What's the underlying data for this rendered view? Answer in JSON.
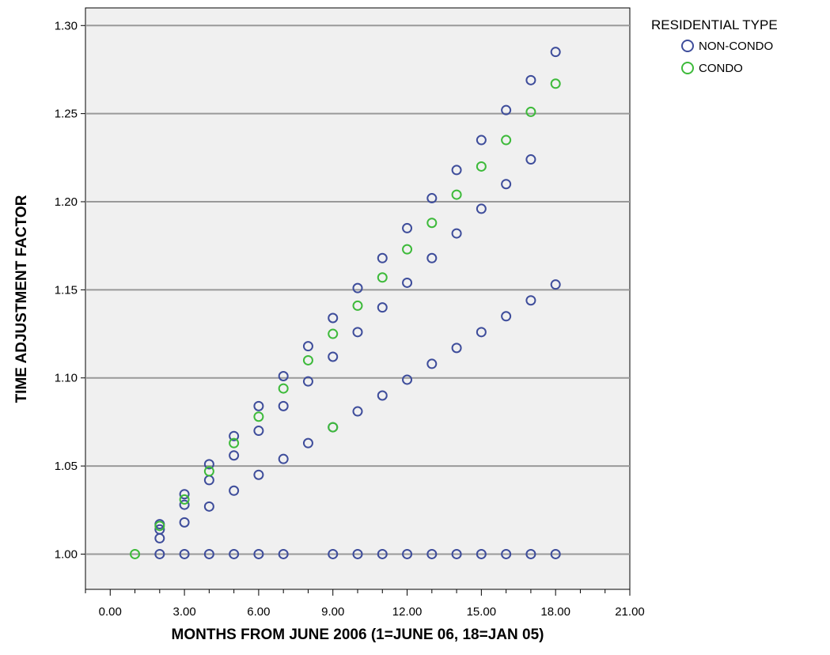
{
  "chart_data": {
    "type": "scatter",
    "title": "",
    "xlabel": "MONTHS FROM JUNE 2006 (1=JUNE 06, 18=JAN 05)",
    "ylabel": "TIME ADJUSTMENT FACTOR",
    "xlim": [
      -1,
      21
    ],
    "ylim": [
      0.98,
      1.31
    ],
    "x_ticks": [
      0,
      3,
      6,
      9,
      12,
      15,
      18,
      21
    ],
    "x_tick_labels": [
      "0.00",
      "3.00",
      "6.00",
      "9.00",
      "12.00",
      "15.00",
      "18.00",
      "21.00"
    ],
    "x_minor_step": 1,
    "y_ticks": [
      1.0,
      1.05,
      1.1,
      1.15,
      1.2,
      1.25,
      1.3
    ],
    "y_tick_labels": [
      "1.00",
      "1.05",
      "1.10",
      "1.15",
      "1.20",
      "1.25",
      "1.30"
    ],
    "grid": "horizontal",
    "plot_background": "#f0f0f0",
    "legend": {
      "title": "RESIDENTIAL TYPE",
      "placement": "top-right, outside plot"
    },
    "series": [
      {
        "name": "NON-CONDO",
        "color": "#3e4d9b",
        "points": [
          [
            2,
            1.0
          ],
          [
            3,
            1.0
          ],
          [
            4,
            1.0
          ],
          [
            5,
            1.0
          ],
          [
            6,
            1.0
          ],
          [
            7,
            1.0
          ],
          [
            9,
            1.0
          ],
          [
            10,
            1.0
          ],
          [
            11,
            1.0
          ],
          [
            12,
            1.0
          ],
          [
            13,
            1.0
          ],
          [
            14,
            1.0
          ],
          [
            15,
            1.0
          ],
          [
            16,
            1.0
          ],
          [
            17,
            1.0
          ],
          [
            18,
            1.0
          ],
          [
            2,
            1.009
          ],
          [
            3,
            1.018
          ],
          [
            4,
            1.027
          ],
          [
            5,
            1.036
          ],
          [
            6,
            1.045
          ],
          [
            7,
            1.054
          ],
          [
            8,
            1.063
          ],
          [
            9,
            1.072
          ],
          [
            10,
            1.081
          ],
          [
            11,
            1.09
          ],
          [
            12,
            1.099
          ],
          [
            13,
            1.108
          ],
          [
            14,
            1.117
          ],
          [
            15,
            1.126
          ],
          [
            16,
            1.135
          ],
          [
            17,
            1.144
          ],
          [
            18,
            1.153
          ],
          [
            2,
            1.014
          ],
          [
            3,
            1.028
          ],
          [
            4,
            1.042
          ],
          [
            5,
            1.056
          ],
          [
            6,
            1.07
          ],
          [
            7,
            1.084
          ],
          [
            8,
            1.098
          ],
          [
            9,
            1.112
          ],
          [
            10,
            1.126
          ],
          [
            11,
            1.14
          ],
          [
            12,
            1.154
          ],
          [
            13,
            1.168
          ],
          [
            14,
            1.182
          ],
          [
            15,
            1.196
          ],
          [
            16,
            1.21
          ],
          [
            17,
            1.224
          ],
          [
            2,
            1.017
          ],
          [
            3,
            1.034
          ],
          [
            4,
            1.051
          ],
          [
            5,
            1.067
          ],
          [
            6,
            1.084
          ],
          [
            7,
            1.101
          ],
          [
            8,
            1.118
          ],
          [
            9,
            1.134
          ],
          [
            10,
            1.151
          ],
          [
            11,
            1.168
          ],
          [
            12,
            1.185
          ],
          [
            13,
            1.202
          ],
          [
            14,
            1.218
          ],
          [
            15,
            1.235
          ],
          [
            16,
            1.252
          ],
          [
            17,
            1.269
          ],
          [
            18,
            1.285
          ]
        ]
      },
      {
        "name": "CONDO",
        "color": "#3dba3a",
        "points": [
          [
            1,
            1.0
          ],
          [
            2,
            1.016
          ],
          [
            3,
            1.031
          ],
          [
            4,
            1.047
          ],
          [
            5,
            1.063
          ],
          [
            6,
            1.078
          ],
          [
            7,
            1.094
          ],
          [
            8,
            1.11
          ],
          [
            9,
            1.072
          ],
          [
            9,
            1.125
          ],
          [
            10,
            1.141
          ],
          [
            11,
            1.157
          ],
          [
            12,
            1.173
          ],
          [
            13,
            1.188
          ],
          [
            14,
            1.204
          ],
          [
            15,
            1.22
          ],
          [
            16,
            1.235
          ],
          [
            17,
            1.251
          ],
          [
            18,
            1.267
          ]
        ]
      }
    ]
  }
}
